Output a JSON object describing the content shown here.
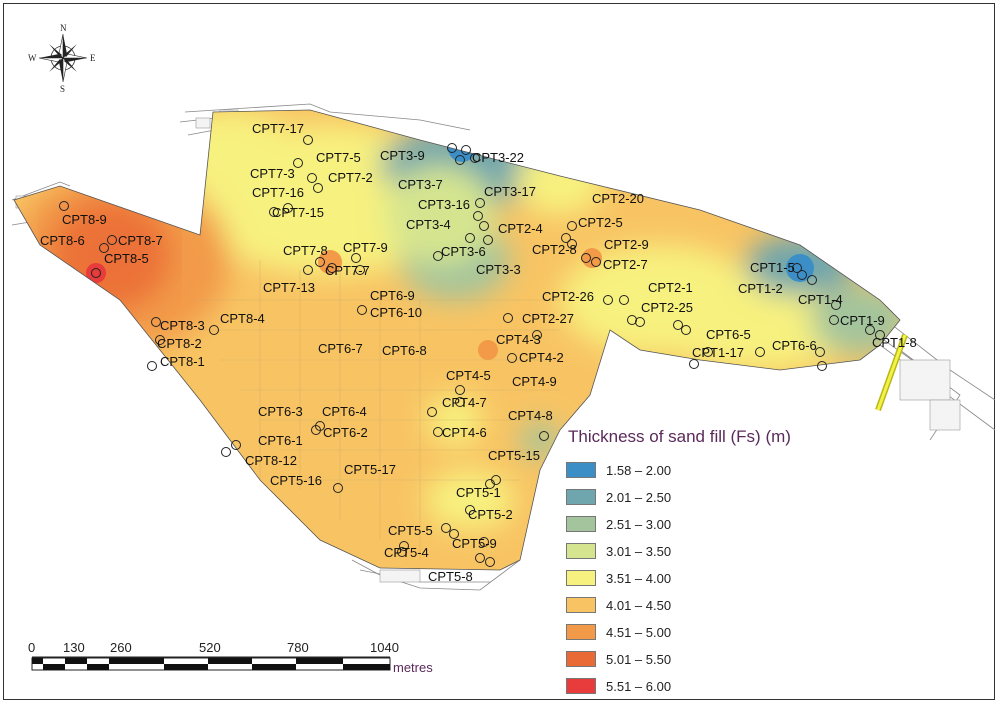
{
  "map": {
    "compass": {
      "north": "N",
      "south": "S",
      "east": "E",
      "west": "W"
    },
    "legend": {
      "title": "Thickness of sand fill (Fs) (m)",
      "classes": [
        {
          "label": "1.58 – 2.00",
          "color": "#3b8fc6"
        },
        {
          "label": "2.01 – 2.50",
          "color": "#6fa5ad"
        },
        {
          "label": "2.51 – 3.00",
          "color": "#a3c49d"
        },
        {
          "label": "3.01 – 3.50",
          "color": "#d5e58f"
        },
        {
          "label": "3.51 – 4.00",
          "color": "#f7f17f"
        },
        {
          "label": "4.01 – 4.50",
          "color": "#f8c463"
        },
        {
          "label": "4.51 – 5.00",
          "color": "#f29a48"
        },
        {
          "label": "5.01 – 5.50",
          "color": "#ea6a35"
        },
        {
          "label": "5.51 – 6.00",
          "color": "#e83b3b"
        }
      ]
    },
    "scalebar": {
      "ticks": [
        "0",
        "130",
        "260",
        "520",
        "780",
        "1040"
      ],
      "unit": "metres"
    },
    "cpt_labels": [
      "CPT7-17",
      "CPT7-5",
      "CPT3-9",
      "CPT3-22",
      "CPT7-3",
      "CPT7-2",
      "CPT3-7",
      "CPT7-16",
      "CPT3-17",
      "CPT2-20",
      "CPT7-15",
      "CPT3-16",
      "CPT3-4",
      "CPT2-4",
      "CPT2-5",
      "CPT8-9",
      "CPT8-6",
      "CPT8-7",
      "CPT8-5",
      "CPT7-8",
      "CPT7-9",
      "CPT3-6",
      "CPT2-8",
      "CPT2-9",
      "CPT7-7",
      "CPT3-3",
      "CPT2-7",
      "CPT1-5",
      "CPT1-2",
      "CPT7-13",
      "CPT2-1",
      "CPT2-26",
      "CPT6-9",
      "CPT1-4",
      "CPT2-25",
      "CPT6-10",
      "CPT2-27",
      "CPT1-9",
      "CPT8-3",
      "CPT8-4",
      "CPT6-5",
      "CPT8-2",
      "CPT4-3",
      "CPT1-8",
      "CPT6-7",
      "CPT6-8",
      "CPT6-6",
      "CPT1-17",
      "CPT4-2",
      "CPT8-1",
      "CPT4-5",
      "CPT4-9",
      "CPT4-7",
      "CPT6-3",
      "CPT6-4",
      "CPT4-8",
      "CPT6-2",
      "CPT4-6",
      "CPT6-1",
      "CPT5-15",
      "CPT8-12",
      "CPT5-17",
      "CPT5-16",
      "CPT5-1",
      "CPT5-2",
      "CPT5-5",
      "CPT5-9",
      "CPT5-4",
      "CPT5-8"
    ]
  }
}
